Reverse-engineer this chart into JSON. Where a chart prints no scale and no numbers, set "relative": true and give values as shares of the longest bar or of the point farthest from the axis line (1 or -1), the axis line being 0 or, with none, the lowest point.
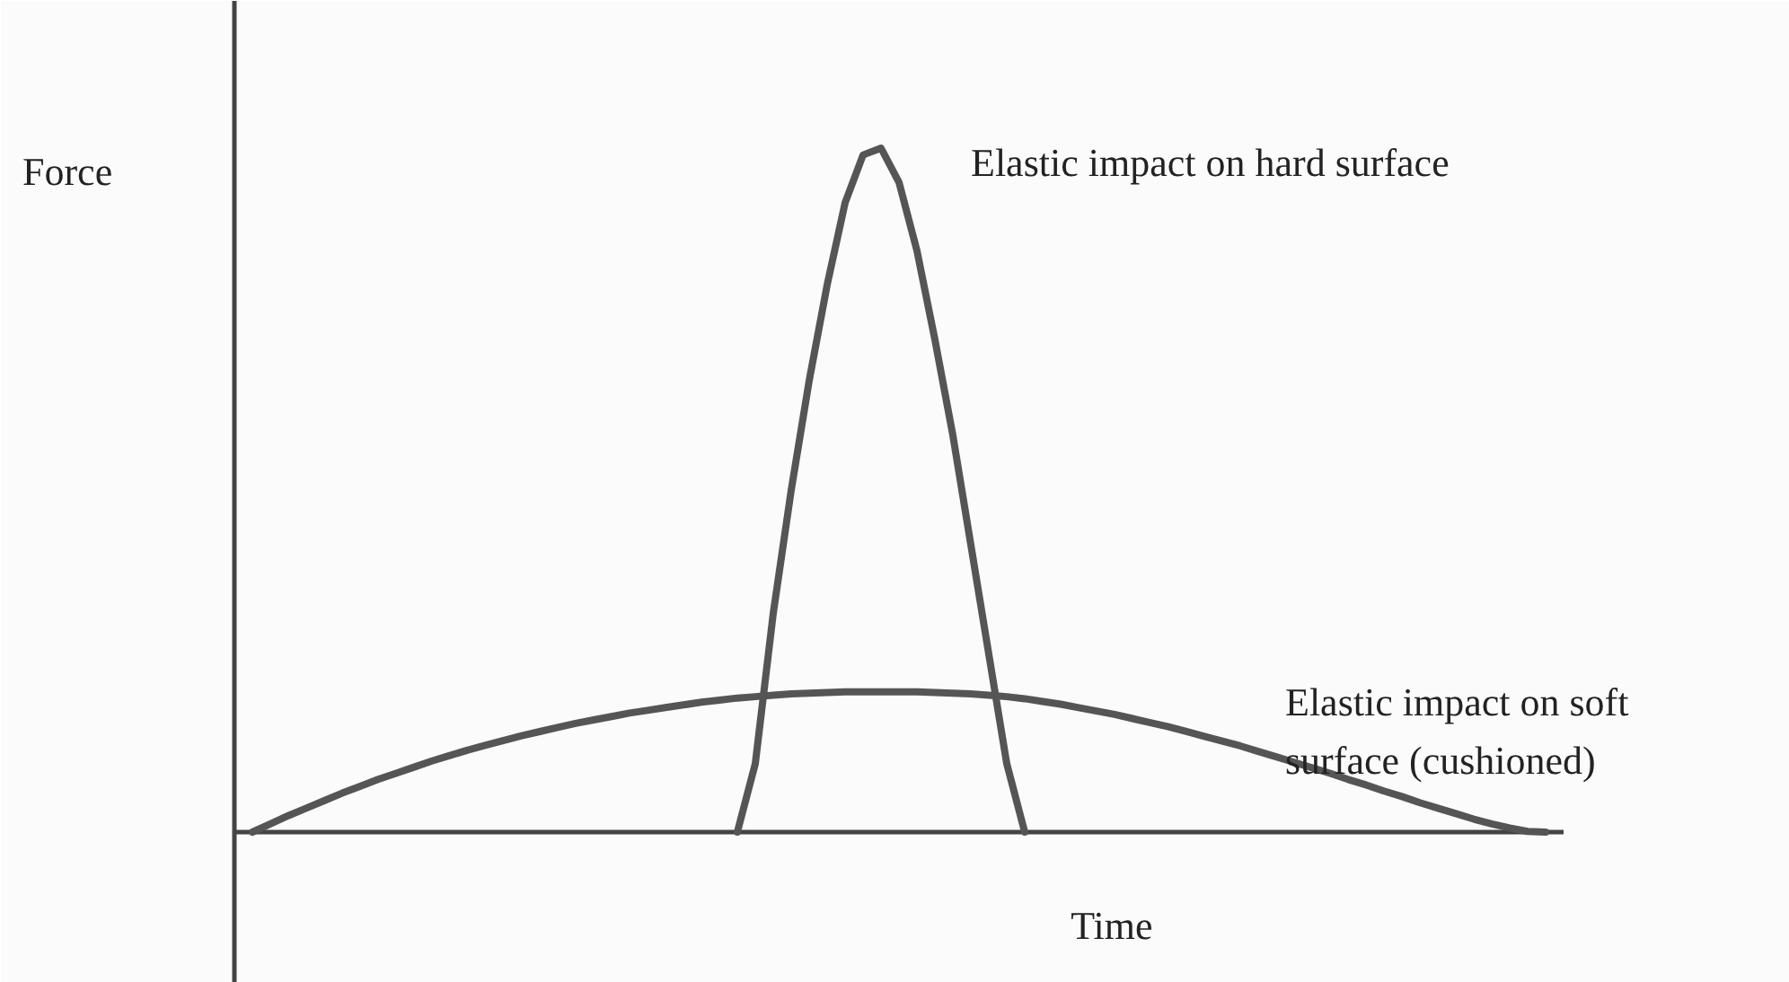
{
  "chart_data": {
    "type": "line",
    "relative": true,
    "xlabel": "Time",
    "ylabel": "Force",
    "categories": [
      null,
      null,
      null,
      null,
      null,
      null,
      null,
      null,
      null,
      null,
      null,
      null,
      null,
      null,
      null,
      null,
      null,
      null,
      null,
      null,
      null,
      null,
      null,
      null,
      null,
      null,
      null,
      null,
      null,
      null,
      null,
      null,
      null,
      null,
      null,
      null,
      null,
      null,
      null,
      null,
      null,
      null,
      null,
      null,
      null,
      null,
      null,
      null,
      null,
      null,
      null,
      null,
      null,
      null,
      null,
      null,
      null,
      null,
      null,
      null,
      null,
      null,
      null,
      null,
      null,
      null,
      null,
      null,
      null,
      null,
      null,
      null,
      null,
      null,
      null
    ],
    "series": [
      {
        "name": "Elastic impact on hard surface",
        "color": "#555555",
        "values": [
          null,
          null,
          null,
          null,
          null,
          null,
          null,
          null,
          null,
          null,
          null,
          null,
          null,
          null,
          null,
          null,
          null,
          null,
          null,
          null,
          null,
          null,
          null,
          null,
          null,
          null,
          null,
          null,
          0,
          0.1,
          0.32,
          0.5,
          0.66,
          0.8,
          0.92,
          0.99,
          1.0,
          0.95,
          0.85,
          0.72,
          0.58,
          0.42,
          0.26,
          0.1,
          0,
          null,
          null,
          null,
          null,
          null,
          null,
          null,
          null,
          null,
          null,
          null,
          null,
          null,
          null,
          null,
          null,
          null,
          null,
          null,
          null,
          null,
          null,
          null,
          null,
          null,
          null,
          null,
          null,
          null,
          null
        ]
      },
      {
        "name": "Elastic impact on soft surface (cushioned)",
        "color": "#555555",
        "values": [
          null,
          0,
          0.012,
          0.024,
          0.035,
          0.046,
          0.057,
          0.067,
          0.077,
          0.086,
          0.095,
          0.104,
          0.112,
          0.12,
          0.127,
          0.134,
          0.141,
          0.147,
          0.153,
          0.159,
          0.164,
          0.169,
          0.174,
          0.178,
          0.182,
          0.186,
          0.19,
          0.193,
          0.196,
          0.198,
          0.2,
          0.202,
          0.203,
          0.204,
          0.205,
          0.205,
          0.205,
          0.205,
          0.205,
          0.204,
          0.203,
          0.202,
          0.2,
          0.198,
          0.195,
          0.191,
          0.187,
          0.182,
          0.177,
          0.172,
          0.166,
          0.16,
          0.154,
          0.147,
          0.14,
          0.133,
          0.126,
          0.118,
          0.11,
          0.102,
          0.094,
          0.086,
          0.077,
          0.069,
          0.06,
          0.052,
          0.043,
          0.035,
          0.027,
          0.019,
          0.012,
          0.006,
          0.001,
          0,
          null
        ]
      }
    ]
  }
}
